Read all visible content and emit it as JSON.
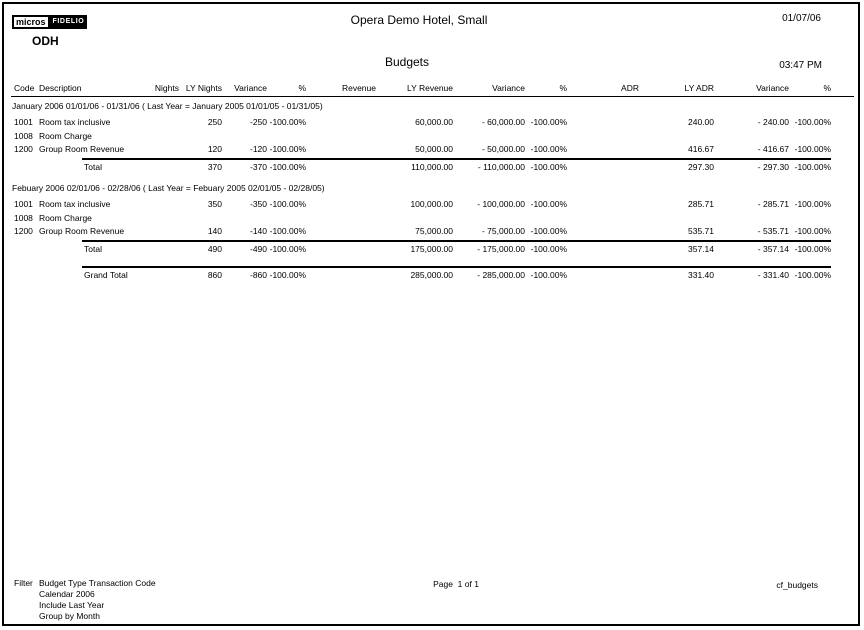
{
  "header": {
    "logo_micros": "micros",
    "logo_fidelio": "FIDELIO",
    "property_code": "ODH",
    "hotel_name": "Opera Demo Hotel, Small",
    "report_title": "Budgets",
    "print_date": "01/07/06",
    "print_time": "03:47 PM"
  },
  "table": {
    "columns": [
      "Code",
      "Description",
      "Nights",
      "LY Nights",
      "Variance",
      "%",
      "Revenue",
      "LY Revenue",
      "Variance",
      "%",
      "ADR",
      "LY ADR",
      "Variance",
      "%"
    ],
    "sections": [
      {
        "header": "January 2006 01/01/06 - 01/31/06 ( Last Year = January 2005 01/01/05 - 01/31/05)",
        "rows": [
          [
            "1001",
            "Room tax inclusive",
            "",
            "250",
            "-250",
            "-100.00%",
            "",
            "60,000.00",
            "- 60,000.00",
            "-100.00%",
            "",
            "240.00",
            "- 240.00",
            "-100.00%"
          ],
          [
            "1008",
            "Room Charge",
            "",
            "",
            "",
            "",
            "",
            "",
            "",
            "",
            "",
            "",
            "",
            ""
          ],
          [
            "1200",
            "Group Room Revenue",
            "",
            "120",
            "-120",
            "-100.00%",
            "",
            "50,000.00",
            "- 50,000.00",
            "-100.00%",
            "",
            "416.67",
            "- 416.67",
            "-100.00%"
          ]
        ],
        "total": [
          "",
          "Total",
          "",
          "370",
          "-370",
          "-100.00%",
          "",
          "110,000.00",
          "- 110,000.00",
          "-100.00%",
          "",
          "297.30",
          "- 297.30",
          "-100.00%"
        ]
      },
      {
        "header": "Febuary 2006 02/01/06 - 02/28/06 ( Last Year = Febuary 2005 02/01/05 - 02/28/05)",
        "rows": [
          [
            "1001",
            "Room tax inclusive",
            "",
            "350",
            "-350",
            "-100.00%",
            "",
            "100,000.00",
            "- 100,000.00",
            "-100.00%",
            "",
            "285.71",
            "- 285.71",
            "-100.00%"
          ],
          [
            "1008",
            "Room Charge",
            "",
            "",
            "",
            "",
            "",
            "",
            "",
            "",
            "",
            "",
            "",
            ""
          ],
          [
            "1200",
            "Group Room Revenue",
            "",
            "140",
            "-140",
            "-100.00%",
            "",
            "75,000.00",
            "- 75,000.00",
            "-100.00%",
            "",
            "535.71",
            "- 535.71",
            "-100.00%"
          ]
        ],
        "total": [
          "",
          "Total",
          "",
          "490",
          "-490",
          "-100.00%",
          "",
          "175,000.00",
          "- 175,000.00",
          "-100.00%",
          "",
          "357.14",
          "- 357.14",
          "-100.00%"
        ]
      }
    ],
    "grand_total": [
      "",
      "Grand Total",
      "",
      "860",
      "-860",
      "-100.00%",
      "",
      "285,000.00",
      "- 285,000.00",
      "-100.00%",
      "",
      "331.40",
      "- 331.40",
      "-100.00%"
    ]
  },
  "footer": {
    "filter_label": "Filter",
    "filter_lines": [
      "Budget Type Transaction Code",
      "Calendar 2006",
      "Include Last Year",
      "Group by Month"
    ],
    "page_text": "Page  1 of 1",
    "report_id": "cf_budgets"
  },
  "colors": {
    "text": "#000000",
    "background": "#ffffff",
    "logo_bg": "#000000"
  }
}
